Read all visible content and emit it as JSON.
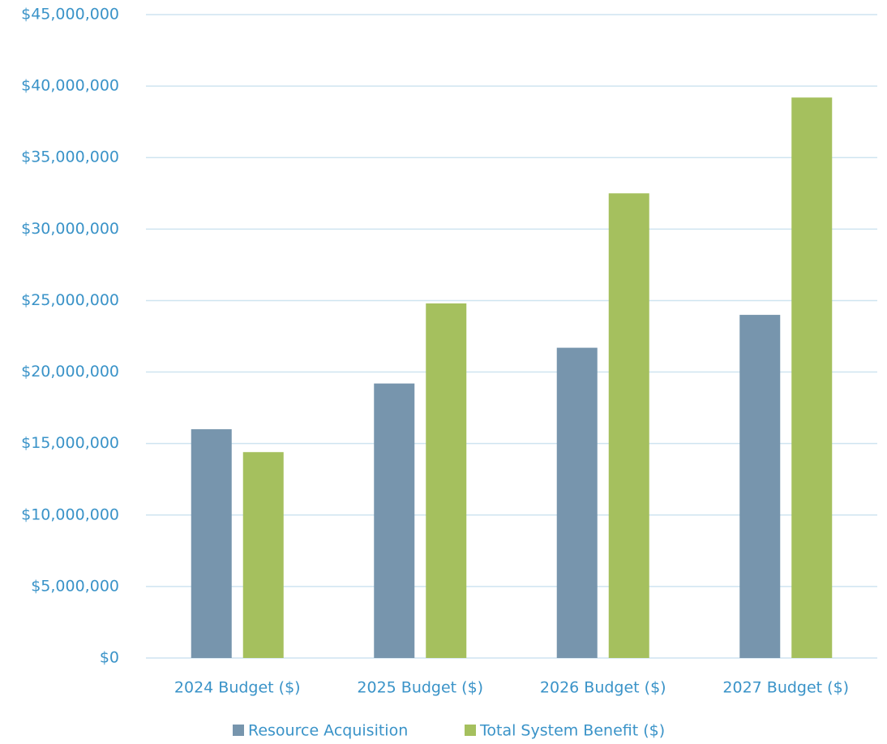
{
  "chart_data": {
    "type": "bar",
    "categories": [
      "2024 Budget ($)",
      "2025 Budget ($)",
      "2026 Budget ($)",
      "2027 Budget ($)"
    ],
    "series": [
      {
        "name": "Resource Acquisition",
        "color": "#7795ad",
        "values": [
          16000000,
          19200000,
          21700000,
          24000000
        ]
      },
      {
        "name": "Total System Benefit ($)",
        "color": "#a5c05e",
        "values": [
          14400000,
          24800000,
          32500000,
          39200000
        ]
      }
    ],
    "ylim": [
      0,
      45000000
    ],
    "yticks": [
      {
        "value": 0,
        "label": "$0"
      },
      {
        "value": 5000000,
        "label": "$5,000,000"
      },
      {
        "value": 10000000,
        "label": "$10,000,000"
      },
      {
        "value": 15000000,
        "label": "$15,000,000"
      },
      {
        "value": 20000000,
        "label": "$20,000,000"
      },
      {
        "value": 25000000,
        "label": "$25,000,000"
      },
      {
        "value": 30000000,
        "label": "$30,000,000"
      },
      {
        "value": 35000000,
        "label": "$35,000,000"
      },
      {
        "value": 40000000,
        "label": "$40,000,000"
      },
      {
        "value": 45000000,
        "label": "$45,000,000"
      }
    ],
    "grid": true,
    "legend": "bottom"
  }
}
